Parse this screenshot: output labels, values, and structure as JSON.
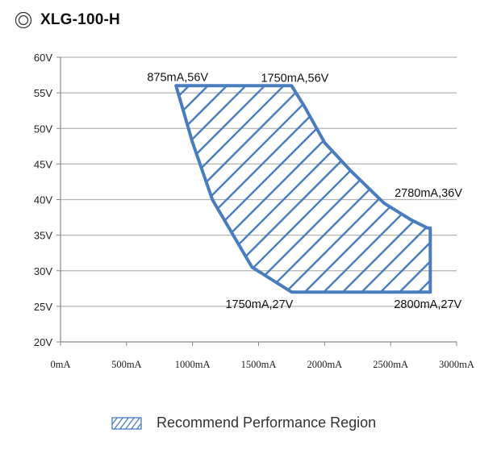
{
  "chart_data": {
    "type": "area",
    "title": "XLG-100-H",
    "x_tick_labels": [
      "0mA",
      "500mA",
      "1000mA",
      "1500mA",
      "2000mA",
      "2500mA",
      "3000mA"
    ],
    "y_tick_labels": [
      "20V",
      "25V",
      "30V",
      "35V",
      "40V",
      "45V",
      "50V",
      "55V",
      "60V"
    ],
    "xlim": [
      0,
      3000
    ],
    "ylim": [
      20,
      60
    ],
    "x_unit": "mA",
    "y_unit": "V",
    "grid": true,
    "legend_position": "bottom-center",
    "series": [
      {
        "name": "Recommend Performance Region",
        "fill": "hatched",
        "color": "#4a7dbf",
        "points": [
          {
            "x": 875,
            "y": 56
          },
          {
            "x": 1750,
            "y": 56
          },
          {
            "x": 1850,
            "y": 53
          },
          {
            "x": 2000,
            "y": 48
          },
          {
            "x": 2200,
            "y": 44
          },
          {
            "x": 2450,
            "y": 39.5
          },
          {
            "x": 2650,
            "y": 37.2
          },
          {
            "x": 2780,
            "y": 36
          },
          {
            "x": 2800,
            "y": 36
          },
          {
            "x": 2800,
            "y": 27
          },
          {
            "x": 1750,
            "y": 27
          },
          {
            "x": 1450,
            "y": 30.5
          },
          {
            "x": 1150,
            "y": 40
          },
          {
            "x": 1000,
            "y": 48
          },
          {
            "x": 875,
            "y": 56
          }
        ]
      }
    ],
    "annotations": [
      {
        "text": "875mA,56V",
        "x": 875,
        "y": 56
      },
      {
        "text": "1750mA,56V",
        "x": 1750,
        "y": 56
      },
      {
        "text": "2780mA,36V",
        "x": 2780,
        "y": 36
      },
      {
        "text": "1750mA,27V",
        "x": 1750,
        "y": 27
      },
      {
        "text": "2800mA,27V",
        "x": 2800,
        "y": 27
      }
    ]
  },
  "colors": {
    "region": "#4a7dbf",
    "grid": "#b3b3b3",
    "axis": "#888888"
  },
  "icons": {
    "title_icon": "concentric-circles-icon",
    "legend_swatch": "hatched-swatch-icon"
  }
}
